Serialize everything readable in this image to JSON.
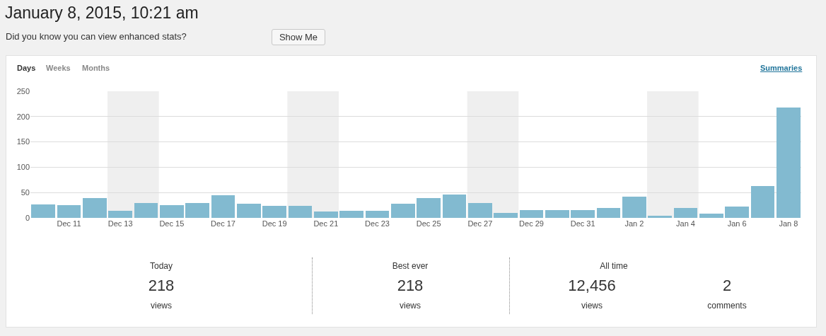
{
  "chart_data": {
    "type": "bar",
    "title": "January 8, 2015, 10:21 am",
    "subtitle": "Did you know you can view enhanced stats?",
    "x": [
      "2014-12-10",
      "2014-12-11",
      "2014-12-12",
      "2014-12-13",
      "2014-12-14",
      "2014-12-15",
      "2014-12-16",
      "2014-12-17",
      "2014-12-18",
      "2014-12-19",
      "2014-12-20",
      "2014-12-21",
      "2014-12-22",
      "2014-12-23",
      "2014-12-24",
      "2014-12-25",
      "2014-12-26",
      "2014-12-27",
      "2014-12-28",
      "2014-12-29",
      "2014-12-30",
      "2014-12-31",
      "2015-01-01",
      "2015-01-02",
      "2015-01-03",
      "2015-01-04",
      "2015-01-05",
      "2015-01-06",
      "2015-01-07",
      "2015-01-08"
    ],
    "values": [
      26,
      25,
      39,
      14,
      29,
      25,
      30,
      45,
      28,
      24,
      24,
      13,
      14,
      14,
      28,
      39,
      46,
      30,
      10,
      16,
      16,
      15,
      20,
      42,
      4,
      19,
      9,
      23,
      63,
      218
    ],
    "color": "#82bad0",
    "xlim": [
      "2014-12-09T12:00",
      "2015-01-08T12:00"
    ],
    "xticks": [
      {
        "value": "2014-12-11",
        "label": "Dec 11"
      },
      {
        "value": "2014-12-13",
        "label": "Dec 13"
      },
      {
        "value": "2014-12-15",
        "label": "Dec 15"
      },
      {
        "value": "2014-12-17",
        "label": "Dec 17"
      },
      {
        "value": "2014-12-19",
        "label": "Dec 19"
      },
      {
        "value": "2014-12-21",
        "label": "Dec 21"
      },
      {
        "value": "2014-12-23",
        "label": "Dec 23"
      },
      {
        "value": "2014-12-25",
        "label": "Dec 25"
      },
      {
        "value": "2014-12-27",
        "label": "Dec 27"
      },
      {
        "value": "2014-12-29",
        "label": "Dec 29"
      },
      {
        "value": "2014-12-31",
        "label": "Dec 31"
      },
      {
        "value": "2015-01-02",
        "label": "Jan 2"
      },
      {
        "value": "2015-01-04",
        "label": "Jan 4"
      },
      {
        "value": "2015-01-06",
        "label": "Jan 6"
      },
      {
        "value": "2015-01-08",
        "label": "Jan 8"
      }
    ],
    "ylim": [
      0,
      250
    ],
    "yticks": [
      0,
      50,
      100,
      150,
      200,
      250
    ],
    "grid": "y",
    "bands": [
      {
        "axis": "x",
        "from": "2014-12-12T12:00",
        "to": "2014-12-14T12:00",
        "color": "#efefef"
      },
      {
        "axis": "x",
        "from": "2014-12-19T12:00",
        "to": "2014-12-21T12:00",
        "color": "#efefef"
      },
      {
        "axis": "x",
        "from": "2014-12-26T12:00",
        "to": "2014-12-28T12:00",
        "color": "#efefef"
      },
      {
        "axis": "x",
        "from": "2015-01-02T12:00",
        "to": "2015-01-04T12:00",
        "color": "#efefef"
      }
    ],
    "annotations": [
      "Show Me",
      "Days",
      "Weeks",
      "Months",
      "Summaries",
      "Today",
      "218",
      "views",
      "Best ever",
      "218",
      "views",
      "All time",
      "12,456",
      "views",
      "2",
      "comments"
    ]
  }
}
